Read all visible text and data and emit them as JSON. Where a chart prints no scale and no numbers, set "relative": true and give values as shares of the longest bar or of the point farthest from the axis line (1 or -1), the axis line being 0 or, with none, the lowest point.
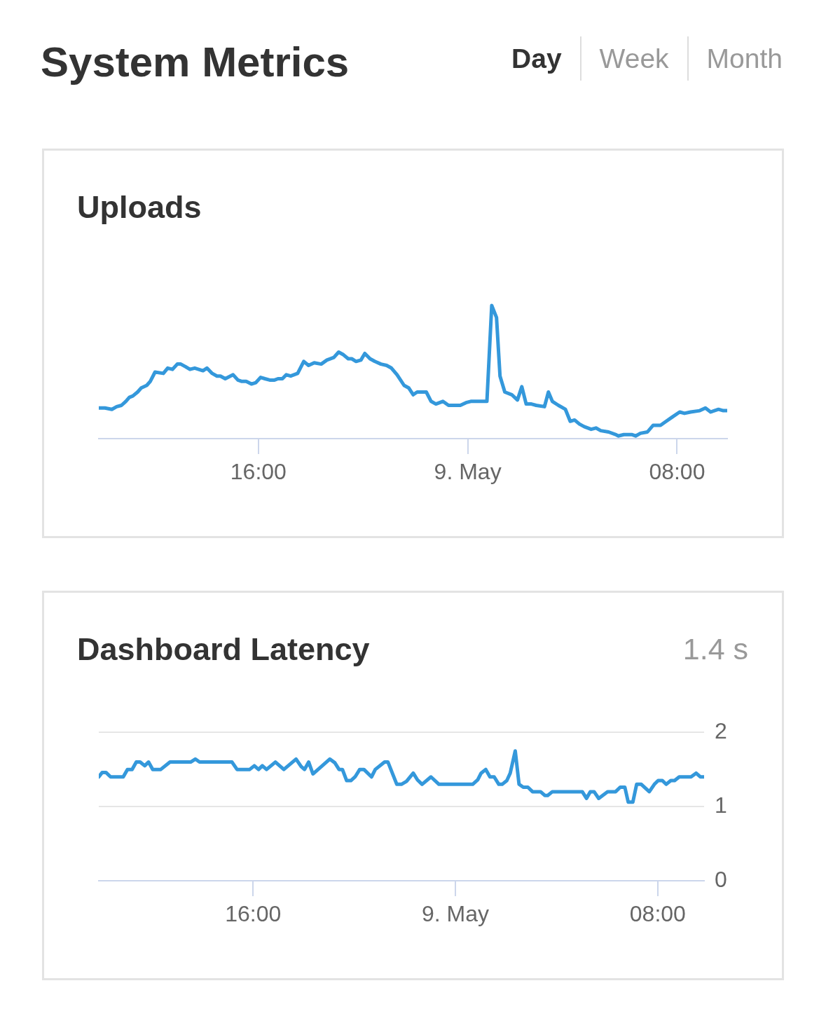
{
  "chart_data": [
    {
      "type": "other",
      "title": "System Metrics",
      "annotations": [
        "Day",
        "Week",
        "Month"
      ]
    },
    {
      "type": "line",
      "title": "Uploads",
      "relative": true,
      "xlim": [
        "--05-08T09:54",
        "--05-09T09:55"
      ],
      "xticks": [
        {
          "value": "--05-08T16:00",
          "label": "16:00"
        },
        {
          "value": "--05-09",
          "label": "9. May"
        },
        {
          "value": "--05-09T08:00",
          "label": "08:00"
        }
      ],
      "x": [
        "--05-08T09:54",
        "--05-08T10:08",
        "--05-08T10:24",
        "--05-08T10:35",
        "--05-08T10:46",
        "--05-08T10:56",
        "--05-08T11:04",
        "--05-08T11:12",
        "--05-08T11:23",
        "--05-08T11:31",
        "--05-08T11:44",
        "--05-08T11:52",
        "--05-08T12:03",
        "--05-08T12:22",
        "--05-08T12:32",
        "--05-08T12:43",
        "--05-08T12:54",
        "--05-08T13:02",
        "--05-08T13:13",
        "--05-08T13:23",
        "--05-08T13:34",
        "--05-08T13:53",
        "--05-08T14:02",
        "--05-08T14:14",
        "--05-08T14:25",
        "--05-08T14:33",
        "--05-08T14:44",
        "--05-08T15:02",
        "--05-08T15:13",
        "--05-08T15:22",
        "--05-08T15:32",
        "--05-08T15:44",
        "--05-08T15:54",
        "--05-08T16:05",
        "--05-08T16:15",
        "--05-08T16:26",
        "--05-08T16:37",
        "--05-08T16:45",
        "--05-08T16:55",
        "--05-08T17:04",
        "--05-08T17:14",
        "--05-08T17:30",
        "--05-08T17:44",
        "--05-08T17:55",
        "--05-08T18:08",
        "--05-08T18:24",
        "--05-08T18:37",
        "--05-08T18:53",
        "--05-08T19:04",
        "--05-08T19:15",
        "--05-08T19:26",
        "--05-08T19:34",
        "--05-08T19:44",
        "--05-08T19:55",
        "--05-08T20:04",
        "--05-08T20:16",
        "--05-08T20:27",
        "--05-08T20:41",
        "--05-08T20:54",
        "--05-08T21:05",
        "--05-08T21:18",
        "--05-08T21:34",
        "--05-08T21:45",
        "--05-08T21:55",
        "--05-08T22:04",
        "--05-08T22:14",
        "--05-08T22:25",
        "--05-08T22:36",
        "--05-08T22:47",
        "--05-08T23:03",
        "--05-08T23:16",
        "--05-08T23:29",
        "--05-08T23:43",
        "--05-08T23:56",
        "--05-09T00:07",
        "--05-09T00:20",
        "--05-09T00:44",
        "--05-09T00:55",
        "--05-09T01:06",
        "--05-09T01:14",
        "--05-09T01:25",
        "--05-09T01:41",
        "--05-09T01:54",
        "--05-09T02:04",
        "--05-09T02:14",
        "--05-09T02:26",
        "--05-09T02:37",
        "--05-09T02:56",
        "--05-09T03:05",
        "--05-09T03:14",
        "--05-09T03:28",
        "--05-09T03:44",
        "--05-09T03:55",
        "--05-09T04:05",
        "--05-09T04:16",
        "--05-09T04:27",
        "--05-09T04:43",
        "--05-09T04:54",
        "--05-09T05:05",
        "--05-09T05:23",
        "--05-09T05:40",
        "--05-09T05:45",
        "--05-09T05:58",
        "--05-09T06:17",
        "--05-09T06:25",
        "--05-09T06:36",
        "--05-09T06:52",
        "--05-09T07:05",
        "--05-09T07:22",
        "--05-09T07:35",
        "--05-09T07:48",
        "--05-09T08:06",
        "--05-09T08:17",
        "--05-09T08:31",
        "--05-09T08:52",
        "--05-09T09:05",
        "--05-09T09:17",
        "--05-09T09:35",
        "--05-09T09:46",
        "--05-09T09:55"
      ],
      "series": [
        {
          "color": "#3498db",
          "values": [
            0.23,
            0.23,
            0.22,
            0.24,
            0.25,
            0.28,
            0.31,
            0.32,
            0.35,
            0.38,
            0.4,
            0.43,
            0.5,
            0.49,
            0.53,
            0.52,
            0.56,
            0.56,
            0.54,
            0.52,
            0.53,
            0.51,
            0.53,
            0.49,
            0.47,
            0.47,
            0.45,
            0.48,
            0.44,
            0.43,
            0.43,
            0.41,
            0.42,
            0.46,
            0.45,
            0.44,
            0.44,
            0.45,
            0.45,
            0.48,
            0.47,
            0.49,
            0.58,
            0.55,
            0.57,
            0.56,
            0.59,
            0.61,
            0.65,
            0.63,
            0.6,
            0.6,
            0.58,
            0.59,
            0.64,
            0.6,
            0.58,
            0.56,
            0.55,
            0.53,
            0.48,
            0.4,
            0.38,
            0.33,
            0.35,
            0.35,
            0.35,
            0.28,
            0.26,
            0.28,
            0.25,
            0.25,
            0.25,
            0.27,
            0.28,
            0.28,
            0.28,
            1,
            0.91,
            0.47,
            0.35,
            0.33,
            0.29,
            0.39,
            0.26,
            0.26,
            0.25,
            0.24,
            0.35,
            0.28,
            0.25,
            0.22,
            0.13,
            0.14,
            0.11,
            0.09,
            0.07,
            0.08,
            0.06,
            0.05,
            0.03,
            0.02,
            0.03,
            0.03,
            0.02,
            0.04,
            0.05,
            0.1,
            0.1,
            0.13,
            0.16,
            0.2,
            0.19,
            0.2,
            0.21,
            0.23,
            0.2,
            0.22,
            0.21,
            0.21
          ]
        }
      ]
    },
    {
      "type": "line",
      "title": "Dashboard Latency",
      "annotations": [
        "1.4 s"
      ],
      "grid": "y",
      "xlim": [
        "--05-08T09:54",
        "--05-09T09:50"
      ],
      "xticks": [
        {
          "value": "--05-08T16:00",
          "label": "16:00"
        },
        {
          "value": "--05-09",
          "label": "9. May"
        },
        {
          "value": "--05-09T08:00",
          "label": "08:00"
        }
      ],
      "ylim": [
        0,
        2
      ],
      "yticks": [
        0,
        1,
        2
      ],
      "x": [
        "--05-08T09:54",
        "--05-08T10:02",
        "--05-08T10:11",
        "--05-08T10:22",
        "--05-08T10:52",
        "--05-08T11:02",
        "--05-08T11:13",
        "--05-08T11:23",
        "--05-08T11:32",
        "--05-08T11:43",
        "--05-08T11:52",
        "--05-08T12:02",
        "--05-08T12:21",
        "--05-08T12:43",
        "--05-08T13:32",
        "--05-08T13:43",
        "--05-08T13:53",
        "--05-08T15:10",
        "--05-08T15:22",
        "--05-08T15:52",
        "--05-08T16:03",
        "--05-08T16:13",
        "--05-08T16:22",
        "--05-08T16:32",
        "--05-08T16:53",
        "--05-08T17:13",
        "--05-08T17:42",
        "--05-08T17:54",
        "--05-08T18:02",
        "--05-08T18:12",
        "--05-08T18:22",
        "--05-08T19:02",
        "--05-08T19:14",
        "--05-08T19:24",
        "--05-08T19:32",
        "--05-08T19:42",
        "--05-08T19:52",
        "--05-08T20:02",
        "--05-08T20:13",
        "--05-08T20:23",
        "--05-08T20:41",
        "--05-08T20:50",
        "--05-08T21:12",
        "--05-08T21:20",
        "--05-08T21:41",
        "--05-08T21:52",
        "--05-08T22:04",
        "--05-08T22:20",
        "--05-08T22:30",
        "--05-08T22:41",
        "--05-08T23:02",
        "--05-08T23:21",
        "--05-09T00:41",
        "--05-09T00:53",
        "--05-09T01:01",
        "--05-09T01:12",
        "--05-09T01:22",
        "--05-09T01:32",
        "--05-09T01:43",
        "--05-09T01:51",
        "--05-09T02:02",
        "--05-09T02:10",
        "--05-09T02:22",
        "--05-09T02:31",
        "--05-09T02:41",
        "--05-09T02:52",
        "--05-09T03:03",
        "--05-09T03:22",
        "--05-09T03:32",
        "--05-09T03:39",
        "--05-09T03:50",
        "--05-09T05:01",
        "--05-09T05:11",
        "--05-09T05:20",
        "--05-09T05:29",
        "--05-09T05:40",
        "--05-09T06:01",
        "--05-09T06:20",
        "--05-09T06:31",
        "--05-09T06:42",
        "--05-09T06:50",
        "--05-09T07:01",
        "--05-09T07:10",
        "--05-09T07:21",
        "--05-09T07:40",
        "--05-09T07:52",
        "--05-09T08:01",
        "--05-09T08:11",
        "--05-09T08:20",
        "--05-09T08:31",
        "--05-09T08:40",
        "--05-09T08:51",
        "--05-09T09:19",
        "--05-09T09:31",
        "--05-09T09:41",
        "--05-09T09:49"
      ],
      "series": [
        {
          "color": "#3498db",
          "values": [
            1.4,
            1.46,
            1.46,
            1.4,
            1.4,
            1.5,
            1.5,
            1.6,
            1.6,
            1.55,
            1.6,
            1.5,
            1.5,
            1.6,
            1.6,
            1.64,
            1.6,
            1.6,
            1.5,
            1.5,
            1.55,
            1.5,
            1.55,
            1.5,
            1.6,
            1.5,
            1.64,
            1.54,
            1.5,
            1.6,
            1.44,
            1.64,
            1.59,
            1.5,
            1.5,
            1.35,
            1.35,
            1.4,
            1.5,
            1.5,
            1.4,
            1.5,
            1.6,
            1.6,
            1.3,
            1.3,
            1.34,
            1.45,
            1.36,
            1.3,
            1.4,
            1.3,
            1.3,
            1.36,
            1.45,
            1.5,
            1.4,
            1.4,
            1.3,
            1.3,
            1.35,
            1.45,
            1.75,
            1.3,
            1.26,
            1.26,
            1.2,
            1.2,
            1.15,
            1.15,
            1.2,
            1.2,
            1.11,
            1.2,
            1.2,
            1.11,
            1.2,
            1.2,
            1.26,
            1.26,
            1.06,
            1.06,
            1.3,
            1.3,
            1.2,
            1.3,
            1.35,
            1.35,
            1.3,
            1.35,
            1.35,
            1.4,
            1.4,
            1.45,
            1.4,
            1.4
          ]
        }
      ]
    }
  ]
}
